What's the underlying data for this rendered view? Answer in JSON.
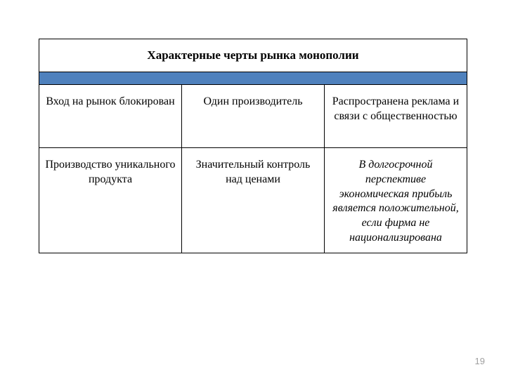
{
  "table": {
    "header": "Характерные черты рынка монополии",
    "header_bg": "#4f81bd",
    "border_color": "#000000",
    "row1": {
      "c1": "Вход на рынок блокирован",
      "c2": "Один производитель",
      "c3": "Распространена реклама и связи с общественностью"
    },
    "row2": {
      "c1": "Производство уникального продукта",
      "c2": "Значительный контроль над ценами",
      "c3": "В долгосрочной перспективе экономическая прибыль является положительной, если фирма не национализирована",
      "c3_italic": true
    }
  },
  "page_number": "19",
  "background_color": "#ffffff",
  "font_family": "Times New Roman"
}
